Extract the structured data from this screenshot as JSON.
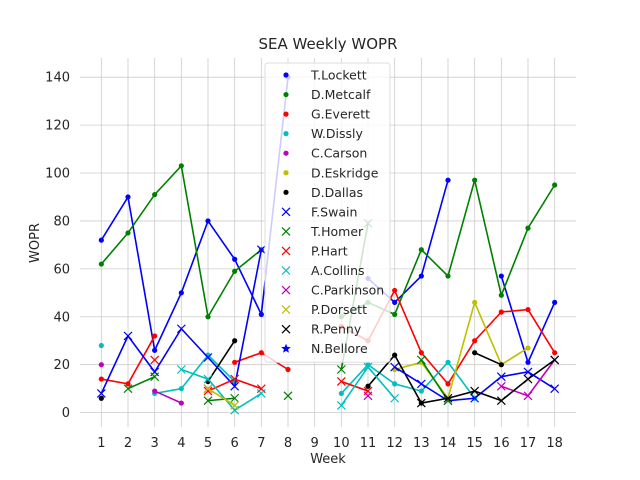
{
  "chart_data": {
    "type": "line",
    "title": "SEA Weekly WOPR",
    "xlabel": "Week",
    "ylabel": "WOPR",
    "x_ticks": [
      1,
      2,
      3,
      4,
      5,
      6,
      7,
      8,
      9,
      10,
      11,
      12,
      13,
      14,
      15,
      16,
      17,
      18
    ],
    "y_ticks": [
      0,
      20,
      40,
      60,
      80,
      100,
      120,
      140
    ],
    "xlim": [
      0.2,
      18.8
    ],
    "ylim": [
      -6,
      148
    ],
    "grid": true,
    "legend_position": "upper-center",
    "series": [
      {
        "name": "T.Lockett",
        "color": "#0000ff",
        "marker": "dot",
        "points": [
          [
            1,
            72
          ],
          [
            2,
            90
          ],
          [
            3,
            26
          ],
          [
            4,
            50
          ],
          [
            5,
            80
          ],
          [
            6,
            64
          ],
          [
            7,
            41
          ],
          [
            8,
            140
          ],
          [
            11,
            56
          ],
          [
            12,
            46
          ],
          [
            13,
            57
          ],
          [
            14,
            97
          ],
          [
            16,
            57
          ],
          [
            17,
            21
          ],
          [
            18,
            46
          ]
        ]
      },
      {
        "name": "D.Metcalf",
        "color": "#008000",
        "marker": "dot",
        "points": [
          [
            1,
            62
          ],
          [
            2,
            75
          ],
          [
            3,
            91
          ],
          [
            4,
            103
          ],
          [
            5,
            40
          ],
          [
            6,
            59
          ],
          [
            7,
            68
          ],
          [
            10,
            40
          ],
          [
            11,
            46
          ],
          [
            12,
            41
          ],
          [
            13,
            68
          ],
          [
            14,
            57
          ],
          [
            15,
            97
          ],
          [
            16,
            49
          ],
          [
            17,
            77
          ],
          [
            18,
            95
          ]
        ]
      },
      {
        "name": "G.Everett",
        "color": "#ff0000",
        "marker": "dot",
        "points": [
          [
            1,
            14
          ],
          [
            2,
            12
          ],
          [
            3,
            32
          ],
          [
            6,
            21
          ],
          [
            7,
            25
          ],
          [
            8,
            18
          ],
          [
            10,
            36
          ],
          [
            11,
            30
          ],
          [
            12,
            51
          ],
          [
            13,
            25
          ],
          [
            14,
            12
          ],
          [
            15,
            30
          ],
          [
            16,
            42
          ],
          [
            17,
            43
          ],
          [
            18,
            25
          ]
        ]
      },
      {
        "name": "W.Dissly",
        "color": "#00bfbf",
        "marker": "dot",
        "points": [
          [
            1,
            28
          ],
          [
            3,
            8
          ],
          [
            4,
            10
          ],
          [
            5,
            24
          ],
          [
            6,
            13
          ],
          [
            10,
            8
          ],
          [
            11,
            20
          ],
          [
            12,
            12
          ],
          [
            13,
            9
          ],
          [
            14,
            21
          ],
          [
            15,
            6
          ]
        ]
      },
      {
        "name": "C.Carson",
        "color": "#bf00bf",
        "marker": "dot",
        "points": [
          [
            1,
            20
          ],
          [
            3,
            9
          ],
          [
            4,
            4
          ]
        ]
      },
      {
        "name": "D.Eskridge",
        "color": "#bfbf00",
        "marker": "dot",
        "points": [
          [
            12,
            18
          ],
          [
            13,
            21
          ],
          [
            14,
            6
          ],
          [
            15,
            46
          ],
          [
            16,
            20
          ],
          [
            17,
            27
          ]
        ]
      },
      {
        "name": "D.Dallas",
        "color": "#000000",
        "marker": "dot",
        "points": [
          [
            1,
            6
          ],
          [
            5,
            13
          ],
          [
            6,
            30
          ],
          [
            11,
            11
          ],
          [
            12,
            24
          ],
          [
            13,
            4
          ],
          [
            15,
            25
          ],
          [
            16,
            20
          ]
        ]
      },
      {
        "name": "F.Swain",
        "color": "#0000ff",
        "marker": "x",
        "points": [
          [
            1,
            8
          ],
          [
            2,
            32
          ],
          [
            3,
            17
          ],
          [
            4,
            35
          ],
          [
            5,
            23
          ],
          [
            6,
            11
          ],
          [
            7,
            68
          ],
          [
            12,
            19
          ],
          [
            13,
            12
          ],
          [
            14,
            5
          ],
          [
            15,
            6
          ],
          [
            16,
            15
          ],
          [
            17,
            17
          ],
          [
            18,
            10
          ]
        ]
      },
      {
        "name": "T.Homer",
        "color": "#008000",
        "marker": "x",
        "points": [
          [
            2,
            10
          ],
          [
            3,
            15
          ],
          [
            5,
            5
          ],
          [
            6,
            6
          ],
          [
            8,
            7
          ],
          [
            10,
            18
          ],
          [
            11,
            79
          ],
          [
            13,
            22
          ],
          [
            14,
            5
          ]
        ]
      },
      {
        "name": "P.Hart",
        "color": "#ff0000",
        "marker": "x",
        "points": [
          [
            3,
            22
          ],
          [
            5,
            9
          ],
          [
            6,
            14
          ],
          [
            7,
            10
          ],
          [
            10,
            13
          ],
          [
            11,
            9
          ]
        ]
      },
      {
        "name": "A.Collins",
        "color": "#00bfbf",
        "marker": "x",
        "points": [
          [
            4,
            18
          ],
          [
            5,
            14
          ],
          [
            6,
            1
          ],
          [
            7,
            8
          ],
          [
            10,
            3
          ],
          [
            11,
            19
          ],
          [
            12,
            6
          ]
        ]
      },
      {
        "name": "C.Parkinson",
        "color": "#bf00bf",
        "marker": "x",
        "points": [
          [
            5,
            10
          ],
          [
            11,
            7
          ],
          [
            16,
            11
          ],
          [
            17,
            7
          ],
          [
            18,
            22
          ]
        ]
      },
      {
        "name": "P.Dorsett",
        "color": "#bfbf00",
        "marker": "x",
        "points": [
          [
            5,
            10
          ],
          [
            6,
            3
          ]
        ]
      },
      {
        "name": "R.Penny",
        "color": "#000000",
        "marker": "x",
        "points": [
          [
            13,
            4
          ],
          [
            14,
            6
          ],
          [
            15,
            9
          ],
          [
            16,
            5
          ],
          [
            17,
            14
          ],
          [
            18,
            22
          ]
        ]
      },
      {
        "name": "N.Bellore",
        "color": "#0000ff",
        "marker": "star",
        "points": []
      }
    ]
  }
}
